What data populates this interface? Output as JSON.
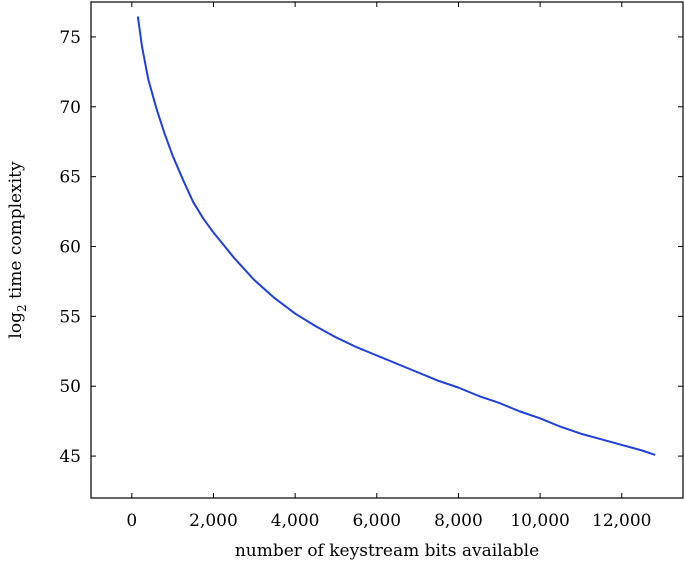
{
  "chart_data": {
    "type": "line",
    "xlabel": "number of keystream bits available",
    "ylabel": {
      "prefix": "log",
      "subscript": "2",
      "suffix": " time complexity"
    },
    "xlim": [
      -1000,
      13500
    ],
    "ylim": [
      42,
      77.5
    ],
    "x_ticks": [
      0,
      2000,
      4000,
      6000,
      8000,
      10000,
      12000
    ],
    "x_tick_labels": [
      "0",
      "2,000",
      "4,000",
      "6,000",
      "8,000",
      "10,000",
      "12,000"
    ],
    "y_ticks": [
      45,
      50,
      55,
      60,
      65,
      70,
      75
    ],
    "y_tick_labels": [
      "45",
      "50",
      "55",
      "60",
      "65",
      "70",
      "75"
    ],
    "grid": false,
    "series": [
      {
        "color": "#1f3fe0",
        "x": [
          150,
          250,
          400,
          600,
          800,
          1000,
          1250,
          1500,
          1750,
          2000,
          2500,
          3000,
          3500,
          4000,
          4500,
          5000,
          5500,
          6000,
          6500,
          7000,
          7500,
          8000,
          8500,
          9000,
          9500,
          10000,
          10500,
          11000,
          11500,
          12000,
          12500,
          12800
        ],
        "y": [
          76.4,
          74.3,
          72.0,
          69.9,
          68.1,
          66.5,
          64.8,
          63.2,
          62.0,
          61.0,
          59.2,
          57.6,
          56.3,
          55.2,
          54.3,
          53.5,
          52.8,
          52.2,
          51.6,
          51.0,
          50.4,
          49.9,
          49.3,
          48.8,
          48.2,
          47.7,
          47.1,
          46.6,
          46.2,
          45.8,
          45.4,
          45.1
        ]
      }
    ]
  }
}
